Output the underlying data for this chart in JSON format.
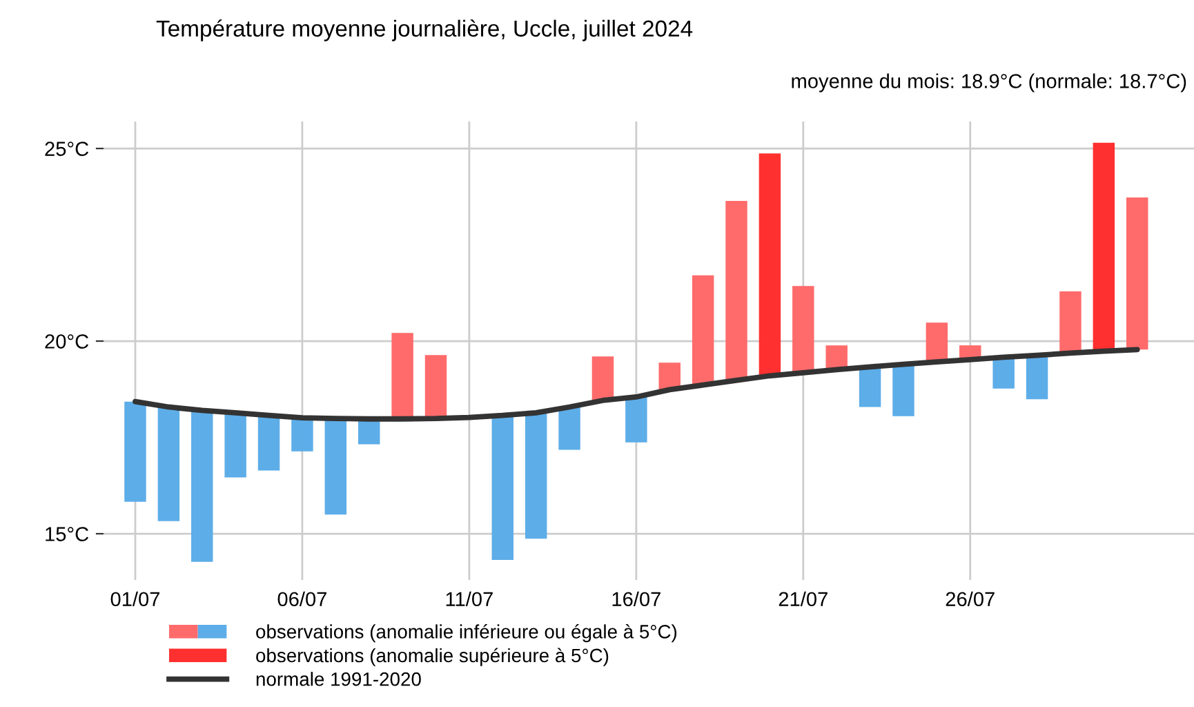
{
  "chart_data": {
    "type": "bar",
    "title": "Température moyenne journalière, Uccle, juillet 2024",
    "annotations": [
      "moyenne du mois: 18.9°C (normale: 18.7°C)"
    ],
    "categories": [
      "01/07",
      null,
      null,
      null,
      null,
      "06/07",
      null,
      null,
      null,
      null,
      "11/07",
      null,
      null,
      null,
      null,
      "16/07",
      null,
      null,
      null,
      null,
      "21/07",
      null,
      null,
      null,
      null,
      "26/07",
      null,
      null,
      null,
      null,
      null
    ],
    "series": [
      {
        "name": "observations (anomalie inférieure ou égale à 5°C)",
        "values": [
          -2.6,
          -2.96,
          -3.93,
          -1.68,
          -1.43,
          -0.87,
          -2.49,
          -0.66,
          2.23,
          1.65,
          null,
          -3.75,
          -3.27,
          -1.11,
          1.14,
          -1.18,
          0.7,
          2.85,
          4.66,
          null,
          2.25,
          0.63,
          -1.04,
          -1.35,
          1.02,
          0.37,
          -0.81,
          -1.14,
          1.6,
          null,
          3.95
        ],
        "base": [
          18.43,
          18.29,
          18.2,
          18.14,
          18.07,
          18.01,
          17.99,
          17.98,
          17.98,
          17.99,
          null,
          18.07,
          18.14,
          18.29,
          18.46,
          18.55,
          18.74,
          18.86,
          18.98,
          null,
          19.18,
          19.26,
          19.33,
          19.4,
          19.46,
          19.52,
          19.58,
          19.63,
          19.69,
          null,
          19.78
        ],
        "colors": [
          "#5dade8",
          "#5dade8",
          "#5dade8",
          "#5dade8",
          "#5dade8",
          "#5dade8",
          "#5dade8",
          "#5dade8",
          "#ff6b6b",
          "#ff6b6b",
          null,
          "#5dade8",
          "#5dade8",
          "#5dade8",
          "#ff6b6b",
          "#5dade8",
          "#ff6b6b",
          "#ff6b6b",
          "#ff6b6b",
          null,
          "#ff6b6b",
          "#ff6b6b",
          "#5dade8",
          "#5dade8",
          "#ff6b6b",
          "#ff6b6b",
          "#5dade8",
          "#5dade8",
          "#ff6b6b",
          null,
          "#ff6b6b"
        ]
      },
      {
        "name": "observations (anomalie supérieure à 5°C)",
        "values": [
          null,
          null,
          null,
          null,
          null,
          null,
          null,
          null,
          null,
          null,
          null,
          null,
          null,
          null,
          null,
          null,
          null,
          null,
          null,
          5.77,
          null,
          null,
          null,
          null,
          null,
          null,
          null,
          null,
          null,
          5.41,
          null
        ],
        "base": [
          null,
          null,
          null,
          null,
          null,
          null,
          null,
          null,
          null,
          null,
          null,
          null,
          null,
          null,
          null,
          null,
          null,
          null,
          null,
          19.1,
          null,
          null,
          null,
          null,
          null,
          null,
          null,
          null,
          null,
          19.74,
          null
        ],
        "colors": [
          null,
          null,
          null,
          null,
          null,
          null,
          null,
          null,
          null,
          null,
          null,
          null,
          null,
          null,
          null,
          null,
          null,
          null,
          null,
          "#ff3030",
          null,
          null,
          null,
          null,
          null,
          null,
          null,
          null,
          null,
          "#ff3030",
          null
        ]
      },
      {
        "name": "normale 1991-2020",
        "type": "line",
        "color": "#333333",
        "values": [
          18.43,
          18.29,
          18.2,
          18.14,
          18.07,
          18.01,
          17.99,
          17.98,
          17.98,
          17.99,
          18.02,
          18.07,
          18.14,
          18.29,
          18.46,
          18.55,
          18.74,
          18.86,
          18.98,
          19.1,
          19.18,
          19.26,
          19.33,
          19.4,
          19.46,
          19.52,
          19.58,
          19.63,
          19.69,
          19.74,
          19.78
        ]
      }
    ],
    "ylim": [
      13.8,
      25.7
    ],
    "yticks": [
      {
        "value": 15,
        "label": "15°C"
      },
      {
        "value": 20,
        "label": "20°C"
      },
      {
        "value": 25,
        "label": "25°C"
      }
    ],
    "grid": true,
    "legend": "bottom left"
  }
}
